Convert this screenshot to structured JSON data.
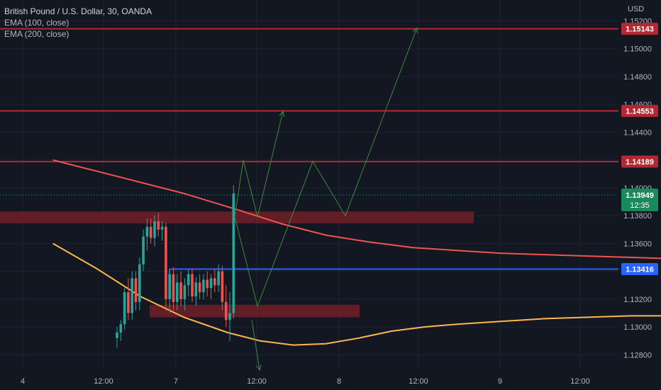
{
  "legend": {
    "symbol": "British Pound / U.S. Dollar, 30, OANDA",
    "ema1": "EMA (100, close)",
    "ema2": "EMA (200, close)"
  },
  "colors": {
    "background": "#131722",
    "grid": "#1f2330",
    "resistance": "#b22833",
    "support_line": "#2962ff",
    "zone": "#7a1f28",
    "ema100": "#f05350",
    "ema200": "#ffb74d",
    "bull": "#26a69a",
    "bear": "#ef5350",
    "arrow": "#3d8b3d",
    "current_label": "#1b8a5a"
  },
  "chart_data": {
    "type": "candlestick",
    "symbol": "British Pound / U.S. Dollar",
    "interval": "30",
    "exchange": "OANDA",
    "currency": "USD",
    "y_axis": {
      "ylim": [
        1.127,
        1.1535
      ],
      "ticks": [
        "1.12800",
        "1.13000",
        "1.13200",
        "1.13400",
        "1.13600",
        "1.13800",
        "1.14000",
        "1.14200",
        "1.14400",
        "1.14600",
        "1.14800",
        "1.15000",
        "1.15200"
      ]
    },
    "x_axis": {
      "ticks": [
        "4",
        "12:00",
        "7",
        "12:00",
        "8",
        "12:00",
        "9",
        "12:00"
      ]
    },
    "grid": true,
    "horizontal_levels": [
      {
        "price": 1.15143,
        "label": "1.15143",
        "kind": "resistance"
      },
      {
        "price": 1.14553,
        "label": "1.14553",
        "kind": "resistance"
      },
      {
        "price": 1.14189,
        "label": "1.14189",
        "kind": "resistance"
      },
      {
        "price": 1.13416,
        "label": "1.13416",
        "kind": "support"
      }
    ],
    "current_price": {
      "label": "1.13949",
      "countdown": "12:35",
      "price": 1.13949
    },
    "zones": [
      {
        "top": 1.1383,
        "bottom": 1.13745
      },
      {
        "top": 1.1316,
        "bottom": 1.1307
      }
    ],
    "ema100": [
      [
        -2,
        1.142
      ],
      [
        10,
        1.1408
      ],
      [
        22,
        1.1396
      ],
      [
        32,
        1.1384
      ],
      [
        40,
        1.1374
      ],
      [
        48,
        1.1366
      ],
      [
        56,
        1.1361
      ],
      [
        64,
        1.1357
      ],
      [
        72,
        1.1355
      ],
      [
        80,
        1.1353
      ],
      [
        88,
        1.1352
      ],
      [
        96,
        1.1351
      ],
      [
        104,
        1.135
      ],
      [
        112,
        1.1349
      ],
      [
        119,
        1.1348
      ]
    ],
    "ema200": [
      [
        -2,
        1.136
      ],
      [
        6,
        1.1342
      ],
      [
        14,
        1.1322
      ],
      [
        22,
        1.1307
      ],
      [
        30,
        1.1296
      ],
      [
        36,
        1.129
      ],
      [
        42,
        1.1287
      ],
      [
        48,
        1.1288
      ],
      [
        54,
        1.1292
      ],
      [
        60,
        1.1297
      ],
      [
        66,
        1.13
      ],
      [
        72,
        1.1302
      ],
      [
        80,
        1.1304
      ],
      [
        88,
        1.1306
      ],
      [
        96,
        1.1307
      ],
      [
        104,
        1.1308
      ],
      [
        112,
        1.1308
      ],
      [
        119,
        1.131
      ]
    ],
    "candles": [
      [
        1.1292,
        1.13,
        1.1285,
        1.1296
      ],
      [
        1.1296,
        1.1305,
        1.129,
        1.1302
      ],
      [
        1.1302,
        1.133,
        1.1298,
        1.1325
      ],
      [
        1.1325,
        1.1335,
        1.1305,
        1.131
      ],
      [
        1.131,
        1.134,
        1.1305,
        1.1335
      ],
      [
        1.1335,
        1.134,
        1.1312,
        1.1318
      ],
      [
        1.1318,
        1.135,
        1.1312,
        1.1345
      ],
      [
        1.1345,
        1.137,
        1.134,
        1.1365
      ],
      [
        1.1365,
        1.1378,
        1.1355,
        1.1372
      ],
      [
        1.1372,
        1.1378,
        1.136,
        1.1364
      ],
      [
        1.1364,
        1.138,
        1.1358,
        1.1376
      ],
      [
        1.1376,
        1.1382,
        1.1365,
        1.137
      ],
      [
        1.137,
        1.1376,
        1.1362,
        1.1372
      ],
      [
        1.1372,
        1.1375,
        1.1312,
        1.132
      ],
      [
        1.132,
        1.1342,
        1.131,
        1.1338
      ],
      [
        1.1338,
        1.1343,
        1.1312,
        1.1318
      ],
      [
        1.1318,
        1.1338,
        1.1312,
        1.1332
      ],
      [
        1.1332,
        1.134,
        1.1315,
        1.132
      ],
      [
        1.132,
        1.1335,
        1.1312,
        1.133
      ],
      [
        1.133,
        1.1342,
        1.1322,
        1.1338
      ],
      [
        1.1338,
        1.1342,
        1.1318,
        1.1322
      ],
      [
        1.1322,
        1.1336,
        1.1315,
        1.1332
      ],
      [
        1.1332,
        1.1338,
        1.132,
        1.1325
      ],
      [
        1.1325,
        1.1338,
        1.132,
        1.1334
      ],
      [
        1.1334,
        1.134,
        1.1322,
        1.1328
      ],
      [
        1.1328,
        1.1338,
        1.132,
        1.1335
      ],
      [
        1.1335,
        1.1342,
        1.1325,
        1.133
      ],
      [
        1.133,
        1.1345,
        1.1325,
        1.134
      ],
      [
        1.134,
        1.1344,
        1.1312,
        1.1318
      ],
      [
        1.1318,
        1.133,
        1.13,
        1.1305
      ],
      [
        1.1305,
        1.1325,
        1.129,
        1.131
      ],
      [
        1.131,
        1.1402,
        1.1306,
        1.1396
      ]
    ]
  }
}
